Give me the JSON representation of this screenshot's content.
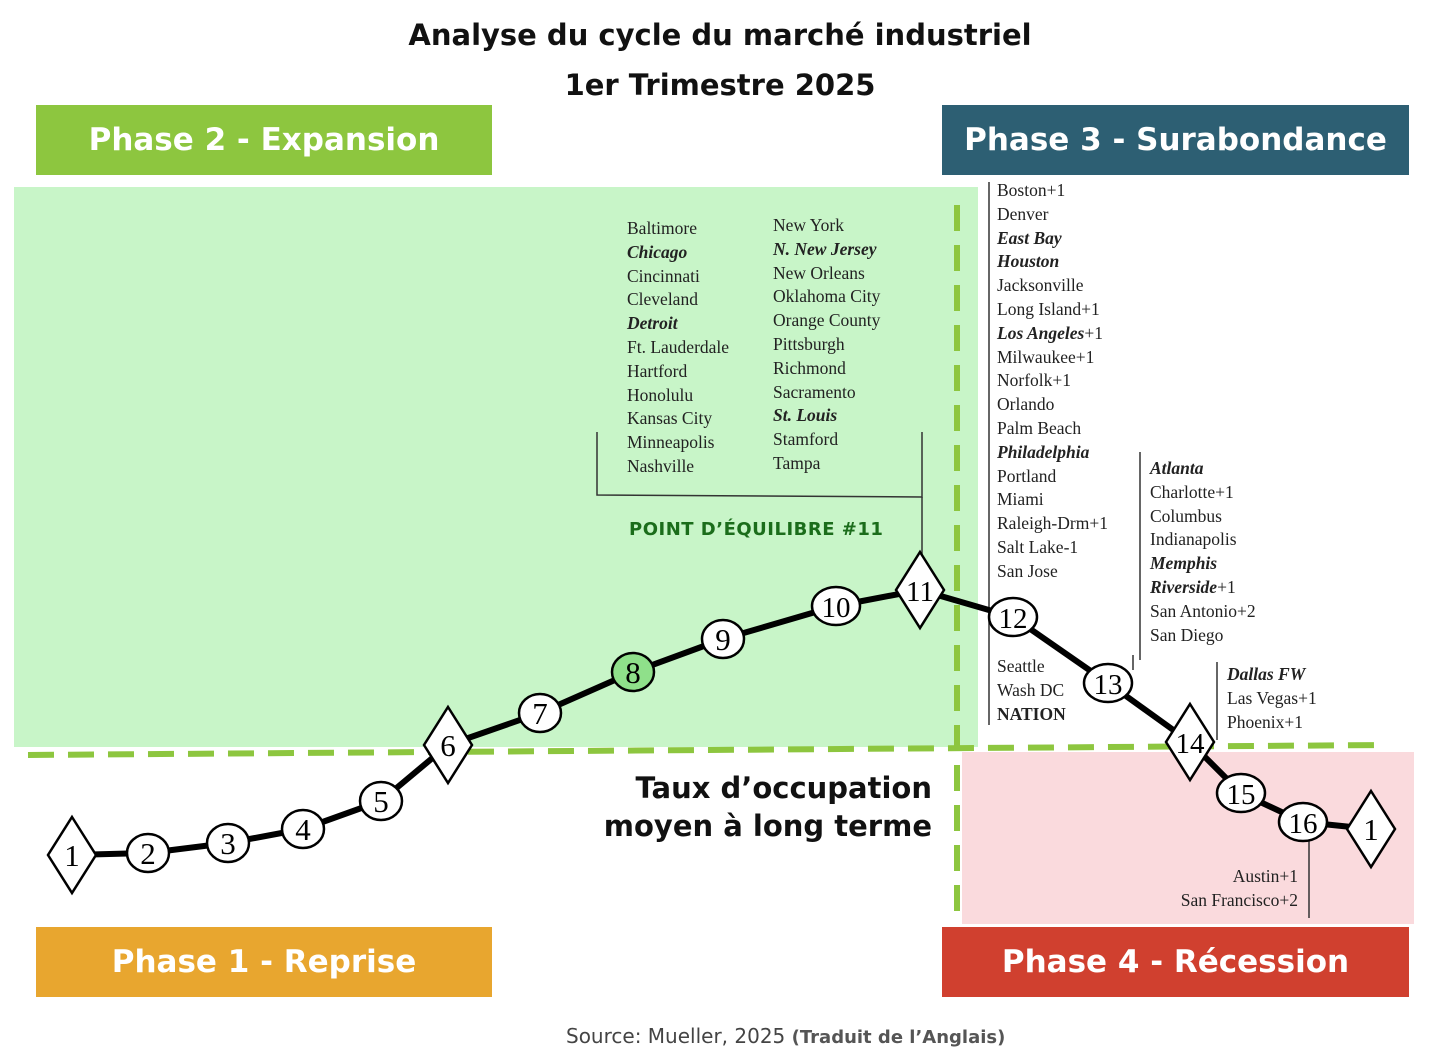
{
  "title": {
    "line1": "Analyse du cycle du marché industriel",
    "line2": "1er Trimestre 2025"
  },
  "phases": {
    "expansion": "Phase 2 - Expansion",
    "hypersupply": "Phase 3 - Surabondance",
    "recovery": "Phase 1 - Reprise",
    "recession": "Phase 4 - Récession"
  },
  "colors": {
    "expansion": "#8dc63f",
    "hypersupply": "#2d5f73",
    "recovery": "#e8a62f",
    "recession": "#d0402f",
    "green_zone": "#c8f5c8",
    "pink_zone": "#fadadd",
    "dashed_line": "#8dc63f"
  },
  "equilibrium_label": "POINT D’ÉQUILIBRE #11",
  "occupancy_label": {
    "line1": "Taux d’occupation",
    "line2": "moyen à long terme"
  },
  "source": {
    "text": "Source: Mueller, 2025",
    "translated": "(Traduit de l’Anglais)"
  },
  "cycle_points": [
    {
      "label": "1",
      "shape": "diamond"
    },
    {
      "label": "2",
      "shape": "circle"
    },
    {
      "label": "3",
      "shape": "circle"
    },
    {
      "label": "4",
      "shape": "circle"
    },
    {
      "label": "5",
      "shape": "circle"
    },
    {
      "label": "6",
      "shape": "diamond"
    },
    {
      "label": "7",
      "shape": "circle"
    },
    {
      "label": "8",
      "shape": "circle",
      "highlight": true
    },
    {
      "label": "9",
      "shape": "circle"
    },
    {
      "label": "10",
      "shape": "circle"
    },
    {
      "label": "11",
      "shape": "diamond"
    },
    {
      "label": "12",
      "shape": "circle"
    },
    {
      "label": "13",
      "shape": "circle"
    },
    {
      "label": "14",
      "shape": "diamond"
    },
    {
      "label": "15",
      "shape": "circle"
    },
    {
      "label": "16",
      "shape": "circle"
    },
    {
      "label": "1",
      "shape": "diamond"
    }
  ],
  "city_groups": {
    "point11_col1": [
      {
        "name": "Baltimore",
        "bold": false
      },
      {
        "name": "Chicago",
        "bold": true
      },
      {
        "name": "Cincinnati",
        "bold": false
      },
      {
        "name": "Cleveland",
        "bold": false
      },
      {
        "name": "Detroit",
        "bold": true
      },
      {
        "name": "Ft. Lauderdale",
        "bold": false
      },
      {
        "name": "Hartford",
        "bold": false
      },
      {
        "name": "Honolulu",
        "bold": false
      },
      {
        "name": "Kansas City",
        "bold": false
      },
      {
        "name": "Minneapolis",
        "bold": false
      },
      {
        "name": "Nashville",
        "bold": false
      }
    ],
    "point11_col2": [
      {
        "name": "New York",
        "bold": false
      },
      {
        "name": "N. New Jersey",
        "bold": true
      },
      {
        "name": "New Orleans",
        "bold": false
      },
      {
        "name": "Oklahoma City",
        "bold": false
      },
      {
        "name": "Orange County",
        "bold": false
      },
      {
        "name": "Pittsburgh",
        "bold": false
      },
      {
        "name": "Richmond",
        "bold": false
      },
      {
        "name": "Sacramento",
        "bold": false
      },
      {
        "name": "St. Louis",
        "bold": true
      },
      {
        "name": "Stamford",
        "bold": false
      },
      {
        "name": "Tampa",
        "bold": false
      }
    ],
    "point12": [
      {
        "name": "Boston+1",
        "bold": false
      },
      {
        "name": "Denver",
        "bold": false
      },
      {
        "name": "East Bay",
        "bold": true
      },
      {
        "name": "Houston",
        "bold": true
      },
      {
        "name": "Jacksonville",
        "bold": false
      },
      {
        "name": "Long Island+1",
        "bold": false
      },
      {
        "name": "Los Angeles",
        "bold": true,
        "suffix": "+1"
      },
      {
        "name": "Milwaukee+1",
        "bold": false
      },
      {
        "name": "Norfolk+1",
        "bold": false
      },
      {
        "name": "Orlando",
        "bold": false
      },
      {
        "name": "Palm Beach",
        "bold": false
      },
      {
        "name": "Philadelphia",
        "bold": true
      },
      {
        "name": "Portland",
        "bold": false
      },
      {
        "name": "Miami",
        "bold": false
      },
      {
        "name": "Raleigh-Drm+1",
        "bold": false
      },
      {
        "name": "Salt Lake-1",
        "bold": false
      },
      {
        "name": "San Jose",
        "bold": false
      }
    ],
    "point12_bottom": [
      {
        "name": "Seattle",
        "bold": false
      },
      {
        "name": "Wash DC",
        "bold": false
      },
      {
        "name": "NATION",
        "nation": true
      }
    ],
    "point13": [
      {
        "name": "Atlanta",
        "bold": true
      },
      {
        "name": "Charlotte+1",
        "bold": false
      },
      {
        "name": "Columbus",
        "bold": false
      },
      {
        "name": "Indianapolis",
        "bold": false
      },
      {
        "name": "Memphis",
        "bold": true
      },
      {
        "name": "Riverside",
        "bold": true,
        "suffix": "+1"
      },
      {
        "name": "San Antonio+2",
        "bold": false
      },
      {
        "name": "San Diego",
        "bold": false
      }
    ],
    "point14": [
      {
        "name": "Dallas FW",
        "bold": true
      },
      {
        "name": " Las Vegas+1",
        "bold": false
      },
      {
        "name": "Phoenix+1",
        "bold": false
      }
    ],
    "point16": [
      {
        "name": "Austin+1",
        "bold": false
      },
      {
        "name": "San Francisco+2",
        "bold": false
      }
    ]
  }
}
